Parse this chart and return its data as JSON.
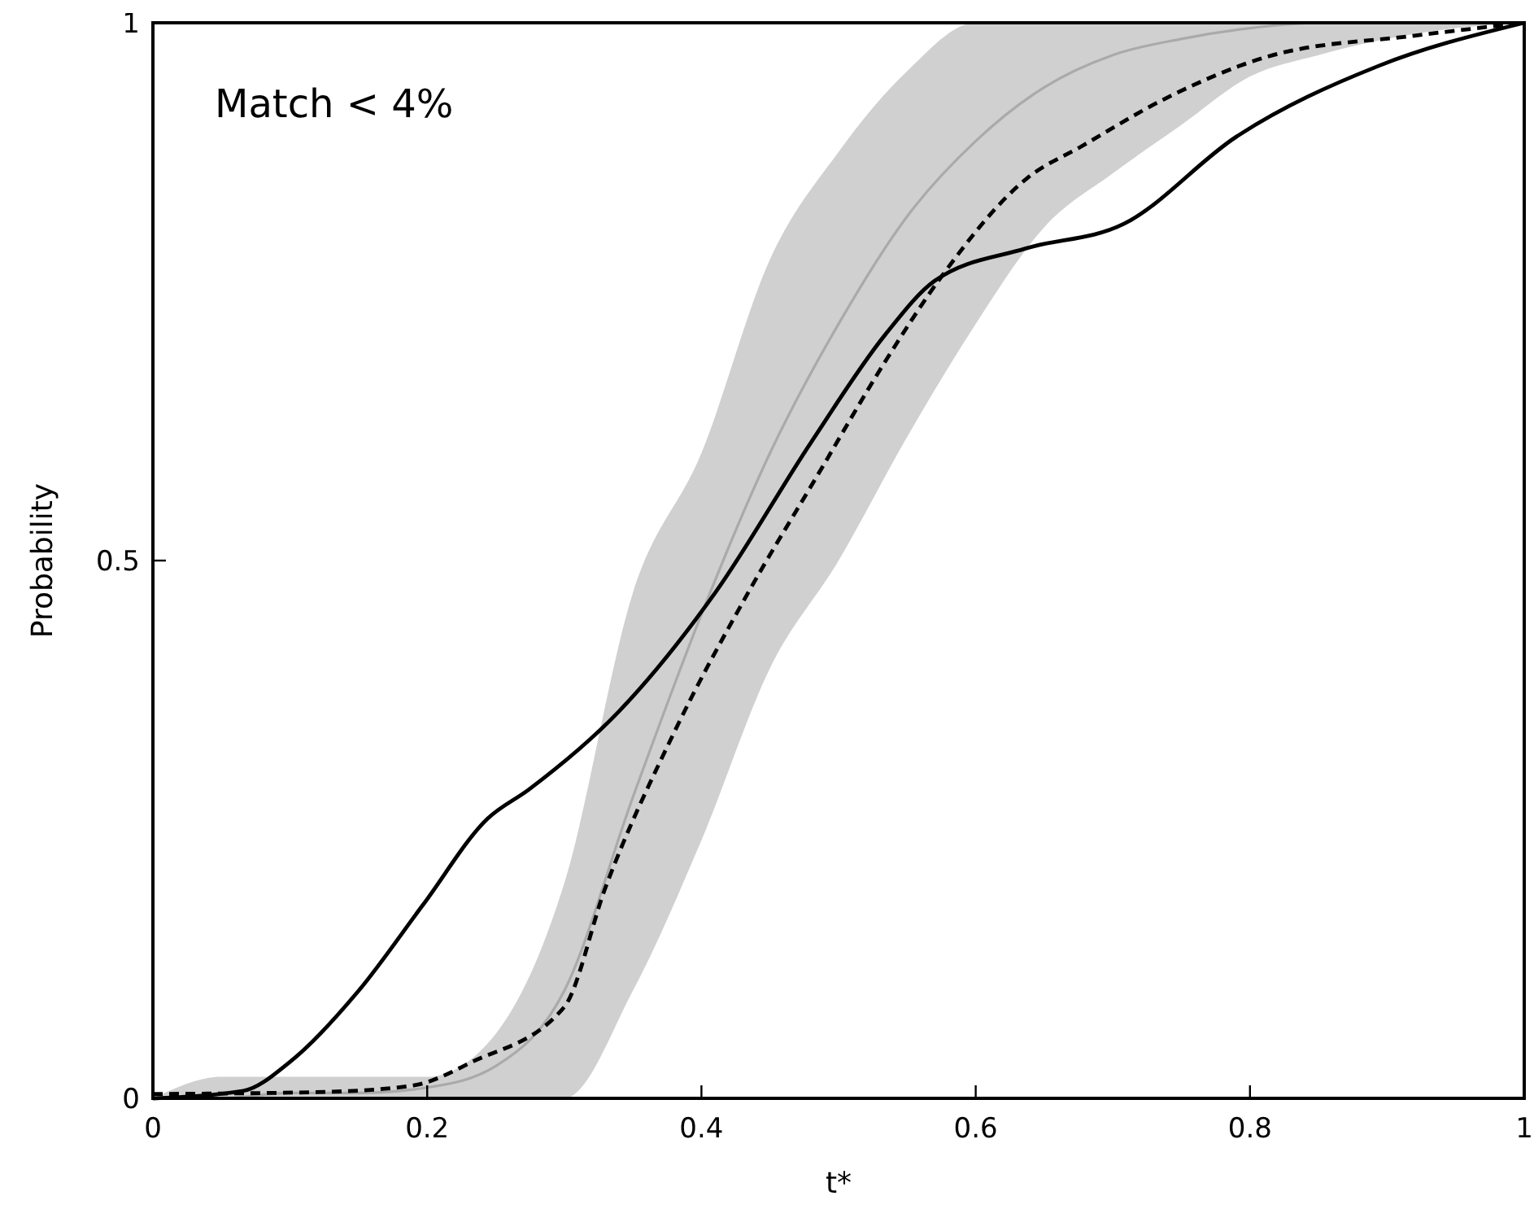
{
  "chart_data": {
    "type": "line",
    "xlabel": "t*",
    "ylabel": "Probability",
    "annotations": [
      "Match < 4%"
    ],
    "xlim": [
      0,
      1
    ],
    "xticks": [
      0,
      0.2,
      0.4,
      0.6,
      0.8,
      1
    ],
    "ylim": [
      0,
      1
    ],
    "yticks": [
      0,
      0.5,
      1
    ],
    "series": [
      {
        "color": "#aaaaaa",
        "line_style": "solid",
        "x": [
          0,
          0.05,
          0.1,
          0.15,
          0.2,
          0.25,
          0.3,
          0.35,
          0.4,
          0.45,
          0.5,
          0.55,
          0.6,
          0.65,
          0.7,
          0.75,
          0.8,
          0.85,
          0.9,
          0.95,
          1
        ],
        "values": [
          0,
          0,
          0.005,
          0.005,
          0.01,
          0.03,
          0.1,
          0.28,
          0.45,
          0.6,
          0.72,
          0.82,
          0.89,
          0.94,
          0.97,
          0.985,
          0.995,
          1,
          1,
          1,
          1
        ],
        "lower": [
          0,
          0,
          0,
          0,
          0,
          0,
          0,
          0.1,
          0.24,
          0.4,
          0.5,
          0.615,
          0.72,
          0.81,
          0.86,
          0.905,
          0.95,
          0.97,
          0.985,
          0.995,
          1
        ],
        "upper": [
          0,
          0.02,
          0.02,
          0.02,
          0.02,
          0.06,
          0.2,
          0.47,
          0.6,
          0.78,
          0.88,
          0.955,
          1,
          1,
          1,
          1,
          1,
          1,
          1,
          1,
          1
        ]
      },
      {
        "color": "#000000",
        "line_style": "dashed",
        "x": [
          0,
          0.126,
          0.19,
          0.233,
          0.3,
          0.33,
          0.38,
          0.434,
          0.485,
          0.533,
          0.575,
          0.638,
          0.677,
          0.739,
          0.817,
          0.92,
          1
        ],
        "values": [
          0.004,
          0.006,
          0.012,
          0.034,
          0.085,
          0.196,
          0.34,
          0.47,
          0.58,
          0.683,
          0.764,
          0.856,
          0.885,
          0.93,
          0.97,
          0.988,
          1
        ]
      },
      {
        "color": "#000000",
        "line_style": "solid",
        "x": [
          0,
          0.066,
          0.1,
          0.15,
          0.197,
          0.244,
          0.274,
          0.34,
          0.41,
          0.48,
          0.534,
          0.57,
          0.636,
          0.708,
          0.79,
          0.894,
          1
        ],
        "values": [
          0,
          0.007,
          0.034,
          0.1,
          0.18,
          0.26,
          0.287,
          0.36,
          0.47,
          0.61,
          0.71,
          0.76,
          0.79,
          0.813,
          0.894,
          0.96,
          1
        ]
      }
    ]
  }
}
